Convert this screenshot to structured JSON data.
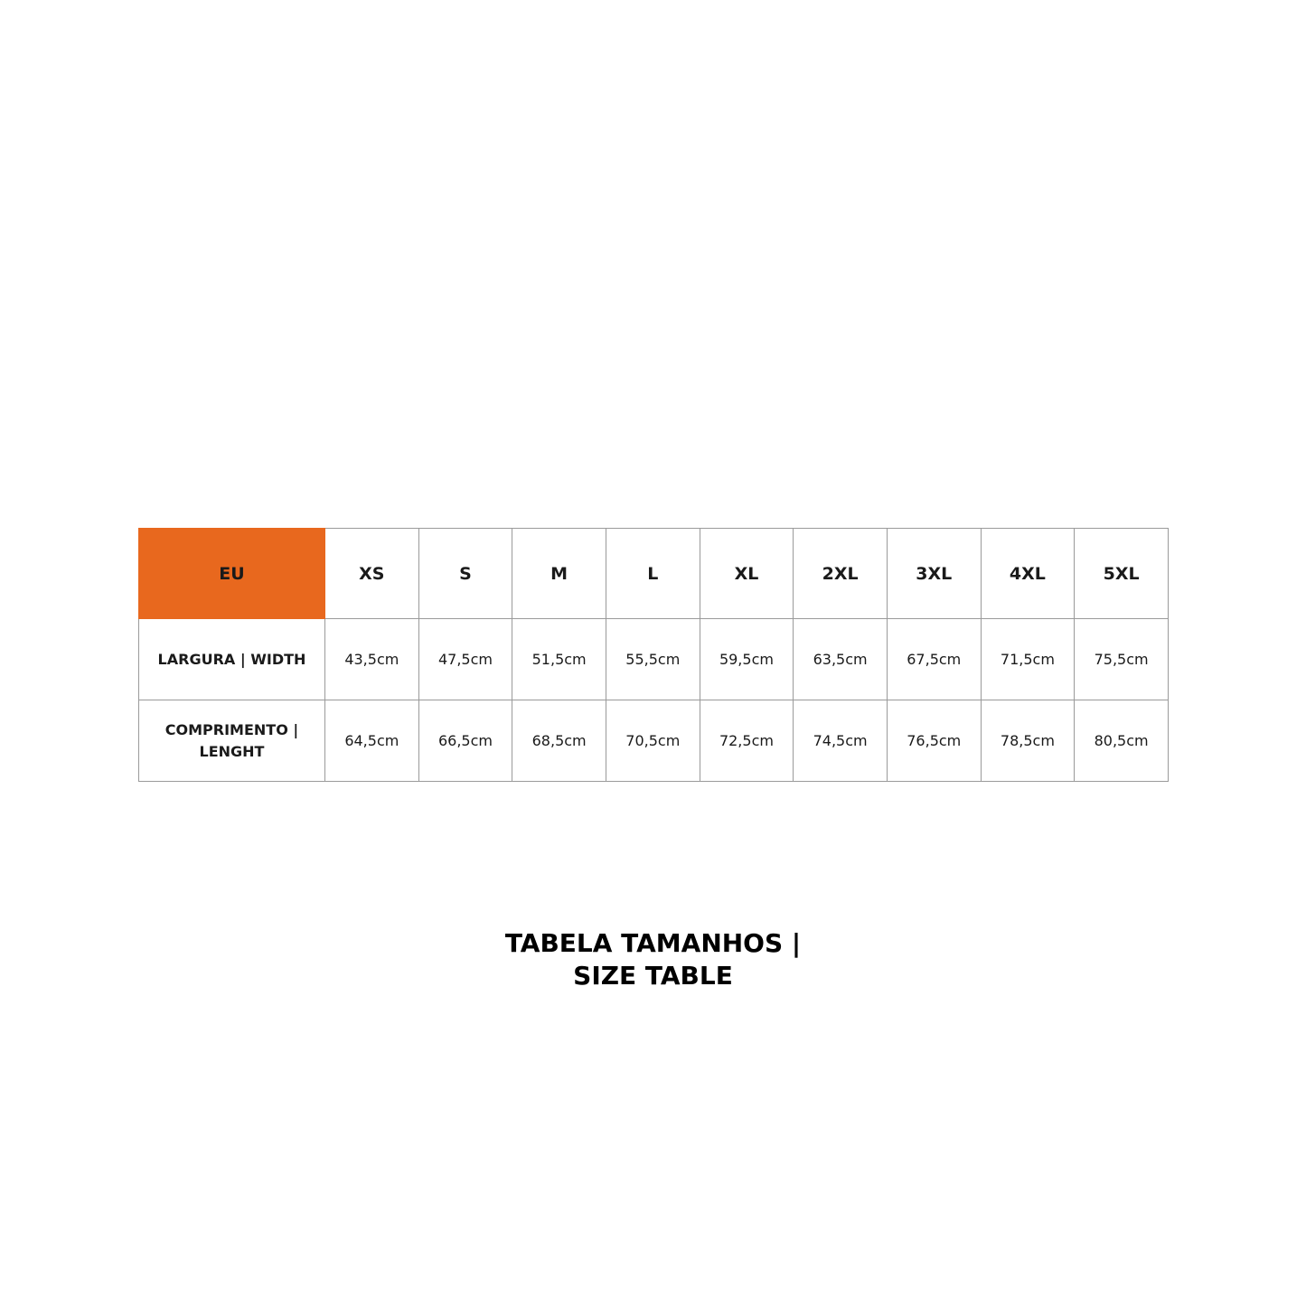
{
  "table": {
    "corner_label": "EU",
    "sizes": [
      "XS",
      "S",
      "M",
      "L",
      "XL",
      "2XL",
      "3XL",
      "4XL",
      "5XL"
    ],
    "rows": [
      {
        "label": "LARGURA | WIDTH",
        "values": [
          "43,5cm",
          "47,5cm",
          "51,5cm",
          "55,5cm",
          "59,5cm",
          "63,5cm",
          "67,5cm",
          "71,5cm",
          "75,5cm"
        ]
      },
      {
        "label": "COMPRIMENTO | LENGHT",
        "values": [
          "64,5cm",
          "66,5cm",
          "68,5cm",
          "70,5cm",
          "72,5cm",
          "74,5cm",
          "76,5cm",
          "78,5cm",
          "80,5cm"
        ]
      }
    ]
  },
  "title": {
    "line1": "TABELA TAMANHOS |",
    "line2": "SIZE TABLE"
  },
  "colors": {
    "accent": "#e8681e"
  }
}
